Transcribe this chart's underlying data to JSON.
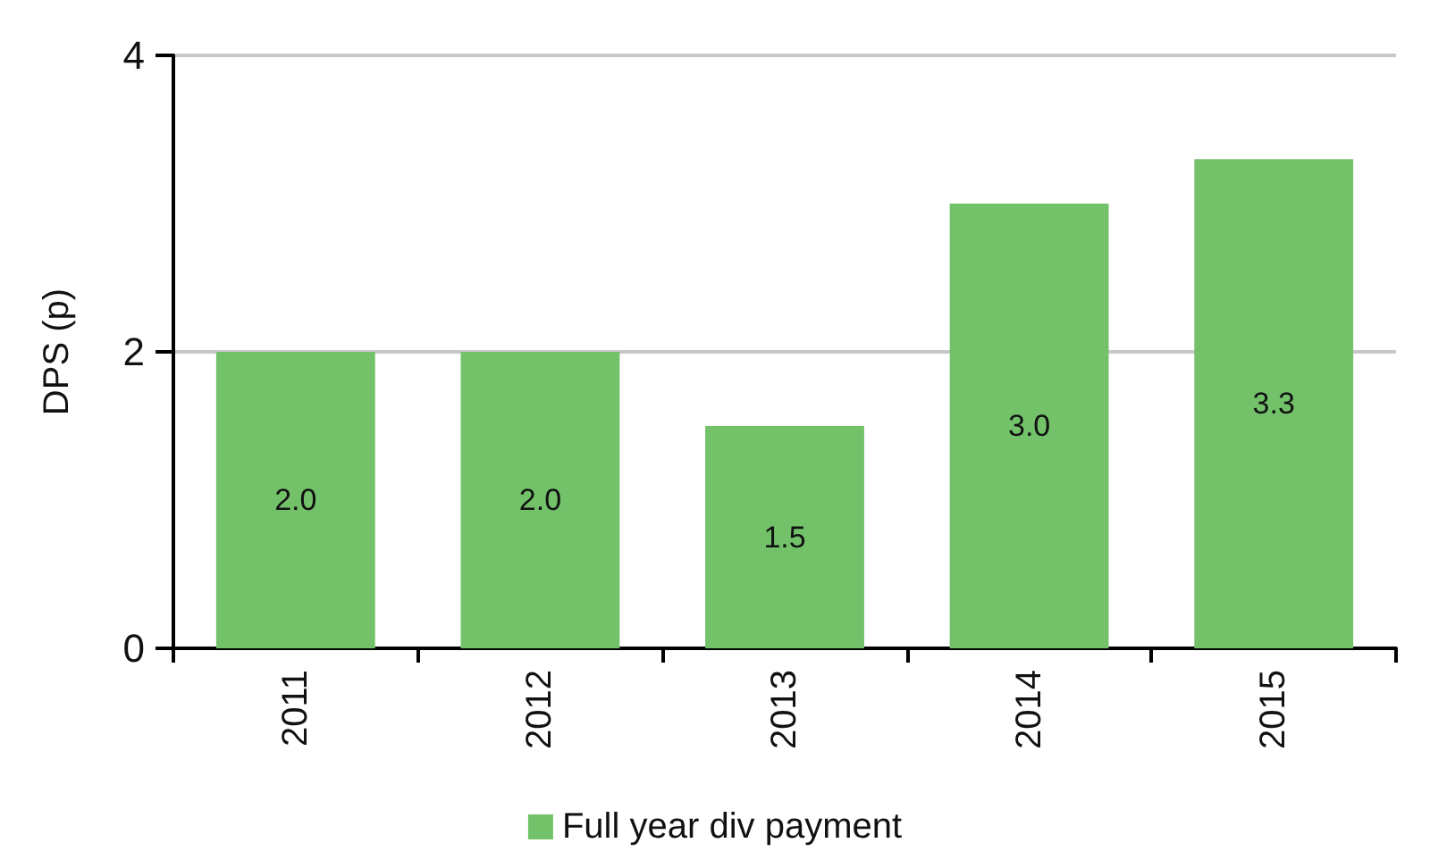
{
  "chart_data": {
    "type": "bar",
    "ylabel": "DPS (p)",
    "categories": [
      "2011",
      "2012",
      "2013",
      "2014",
      "2015"
    ],
    "series": [
      {
        "name": "Full year div payment",
        "color": "#73c26a",
        "values": [
          2.0,
          2.0,
          1.5,
          3.0,
          3.3
        ],
        "value_labels": [
          "2.0",
          "2.0",
          "1.5",
          "3.0",
          "3.3"
        ]
      }
    ],
    "ylim": [
      0,
      4
    ],
    "yticks": [
      0,
      2,
      4
    ],
    "grid": "y",
    "legend": "bottom"
  }
}
